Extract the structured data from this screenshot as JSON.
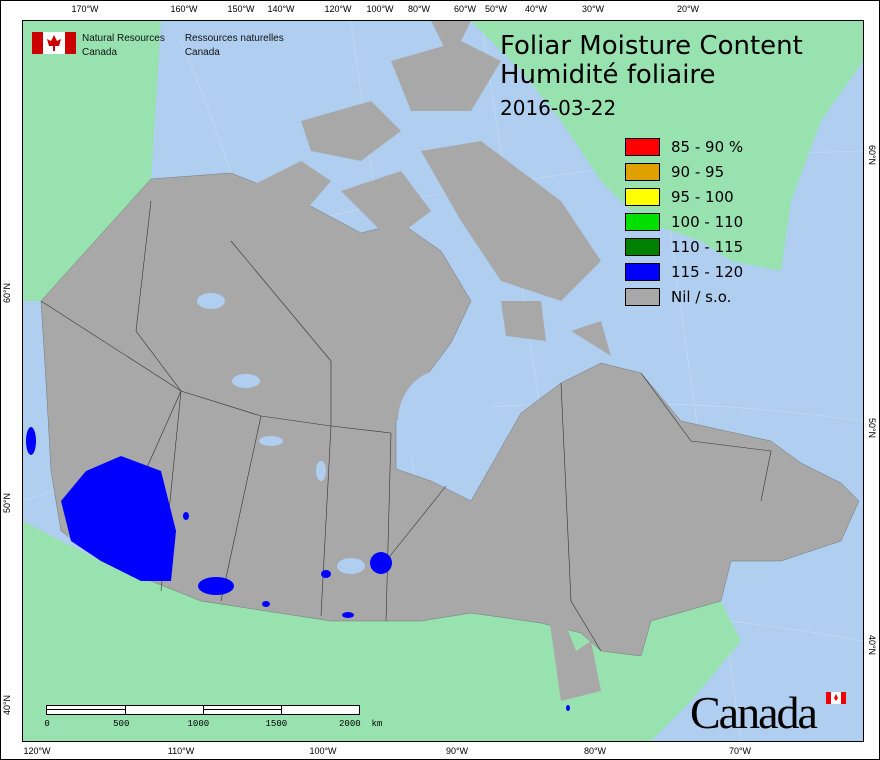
{
  "title": {
    "line1": "Foliar Moisture Content",
    "line2": "Humidité foliaire",
    "date": "2016-03-22"
  },
  "agency": {
    "en_line1": "Natural Resources",
    "en_line2": "Canada",
    "fr_line1": "Ressources naturelles",
    "fr_line2": "Canada",
    "wordmark": "Canada"
  },
  "legend": [
    {
      "label": "85 - 90 %",
      "color": "#ff0000"
    },
    {
      "label": "90 - 95",
      "color": "#e0a000"
    },
    {
      "label": "95 - 100",
      "color": "#ffff00"
    },
    {
      "label": "100 - 110",
      "color": "#00e000"
    },
    {
      "label": "110 - 115",
      "color": "#008000"
    },
    {
      "label": "115 - 120",
      "color": "#0000ff"
    },
    {
      "label": "Nil / s.o.",
      "color": "#a8a8a8"
    }
  ],
  "graticule": {
    "top": [
      "170°W",
      "160°W",
      "150°W",
      "140°W",
      "120°W",
      "100°W",
      "80°W",
      "60°W",
      "50°W",
      "40°W",
      "30°W",
      "20°W"
    ],
    "bottom": [
      "120°W",
      "110°W",
      "100°W",
      "90°W",
      "80°W",
      "70°W"
    ],
    "left": [
      "60°N",
      "50°N",
      "40°N"
    ],
    "right": [
      "60°N",
      "50°N",
      "40°N"
    ]
  },
  "scale_bar": {
    "labels": [
      "0",
      "500",
      "1000",
      "1500",
      "2000  km"
    ]
  },
  "colors": {
    "ocean": "#b0cff0",
    "foreign_land": "#98e2b0",
    "no_data": "#a8a8a8",
    "fmc_115_120": "#0000ff"
  }
}
